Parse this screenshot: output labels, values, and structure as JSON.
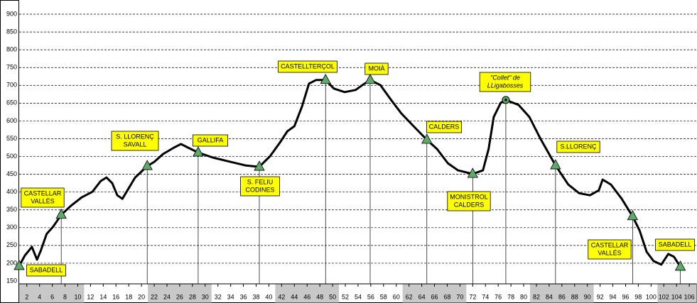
{
  "chart_data": {
    "type": "line",
    "x": [
      0.8,
      1.7,
      2.8,
      3.6,
      4.2,
      5.1,
      6.1,
      7.4,
      8.9,
      10.6,
      12.3,
      13.6,
      14.5,
      15.4,
      16.2,
      17.0,
      17.8,
      19.0,
      20.9,
      22.0,
      23.4,
      25.1,
      26.2,
      27.3,
      28.9,
      31.2,
      33.5,
      36.3,
      38.5,
      40.2,
      41.8,
      42.9,
      44.0,
      45.2,
      46.3,
      47.4,
      48.9,
      50.2,
      51.9,
      53.6,
      54.7,
      55.9,
      57.5,
      59.1,
      60.8,
      62.5,
      64.8,
      66.4,
      68.1,
      69.7,
      72.0,
      73.6,
      74.5,
      75.3,
      76.4,
      77.2,
      79.2,
      80.9,
      82.6,
      85.0,
      87.0,
      88.7,
      90.4,
      91.8,
      92.4,
      93.7,
      95.4,
      97.1,
      98.2,
      99.3,
      100.4,
      101.6,
      102.7,
      103.6,
      104.6
    ],
    "series": [
      {
        "color": "#000000",
        "values": [
          192,
          222,
          246,
          210,
          236,
          282,
          302,
          336,
          361,
          385,
          401,
          431,
          441,
          425,
          391,
          381,
          405,
          441,
          473,
          485,
          507,
          525,
          535,
          525,
          511,
          497,
          487,
          475,
          471,
          501,
          541,
          571,
          585,
          641,
          705,
          715,
          715,
          691,
          681,
          687,
          701,
          715,
          701,
          661,
          621,
          589,
          547,
          521,
          481,
          461,
          451,
          461,
          521,
          611,
          651,
          659,
          645,
          611,
          551,
          475,
          421,
          397,
          391,
          405,
          435,
          421,
          381,
          332,
          292,
          232,
          206,
          196,
          226,
          218,
          190
        ]
      }
    ],
    "landmarks": [
      {
        "lines": [
          "SABADELL"
        ],
        "x": 0.8,
        "y": 192,
        "marker": "triangle"
      },
      {
        "lines": [
          "CASTELLAR",
          "VALLÈS"
        ],
        "x": 7.4,
        "y": 336,
        "marker": "triangle"
      },
      {
        "lines": [
          "S. LLORENÇ",
          "SAVALL"
        ],
        "x": 20.9,
        "y": 473,
        "marker": "triangle"
      },
      {
        "lines": [
          "GALLIFA"
        ],
        "x": 28.9,
        "y": 511,
        "marker": "triangle"
      },
      {
        "lines": [
          "S. FELIU",
          "CODINES"
        ],
        "x": 38.5,
        "y": 471,
        "marker": "triangle"
      },
      {
        "lines": [
          "CASTELLTERÇOL"
        ],
        "x": 48.9,
        "y": 715,
        "marker": "triangle"
      },
      {
        "lines": [
          "MOIÀ"
        ],
        "x": 55.9,
        "y": 715,
        "marker": "triangle"
      },
      {
        "lines": [
          "CALDERS"
        ],
        "x": 64.8,
        "y": 547,
        "marker": "triangle"
      },
      {
        "lines": [
          "MONISTROL",
          "CALDERS"
        ],
        "x": 72.0,
        "y": 451,
        "marker": "triangle"
      },
      {
        "lines": [
          "\"Collet\" de",
          "LLigabosses"
        ],
        "x": 77.2,
        "y": 659,
        "marker": "circle"
      },
      {
        "lines": [
          "S.LLORENÇ"
        ],
        "x": 85.0,
        "y": 475,
        "marker": "triangle"
      },
      {
        "lines": [
          "CASTELLAR",
          "VALLÉS"
        ],
        "x": 97.1,
        "y": 332,
        "marker": "triangle"
      },
      {
        "lines": [
          "SABADELL"
        ],
        "x": 104.6,
        "y": 190,
        "marker": "triangle"
      }
    ],
    "marker_color": "#5faa6a",
    "label_color": "#ffff00",
    "xlim": [
      0.8,
      107.1
    ],
    "ylim": [
      150,
      900
    ],
    "xticks": [
      2,
      4,
      6,
      8,
      10,
      12,
      14,
      16,
      18,
      20,
      22,
      24,
      26,
      28,
      30,
      32,
      34,
      36,
      38,
      40,
      42,
      44,
      46,
      48,
      50,
      52,
      54,
      56,
      58,
      60,
      62,
      64,
      66,
      68,
      70,
      72,
      74,
      76,
      78,
      80,
      82,
      84,
      86,
      88,
      90,
      92,
      94,
      96,
      98,
      100,
      102,
      104,
      106
    ],
    "yticks": [
      150,
      200,
      250,
      300,
      350,
      400,
      450,
      500,
      550,
      600,
      650,
      700,
      750,
      800,
      850,
      900
    ],
    "grid": true
  }
}
